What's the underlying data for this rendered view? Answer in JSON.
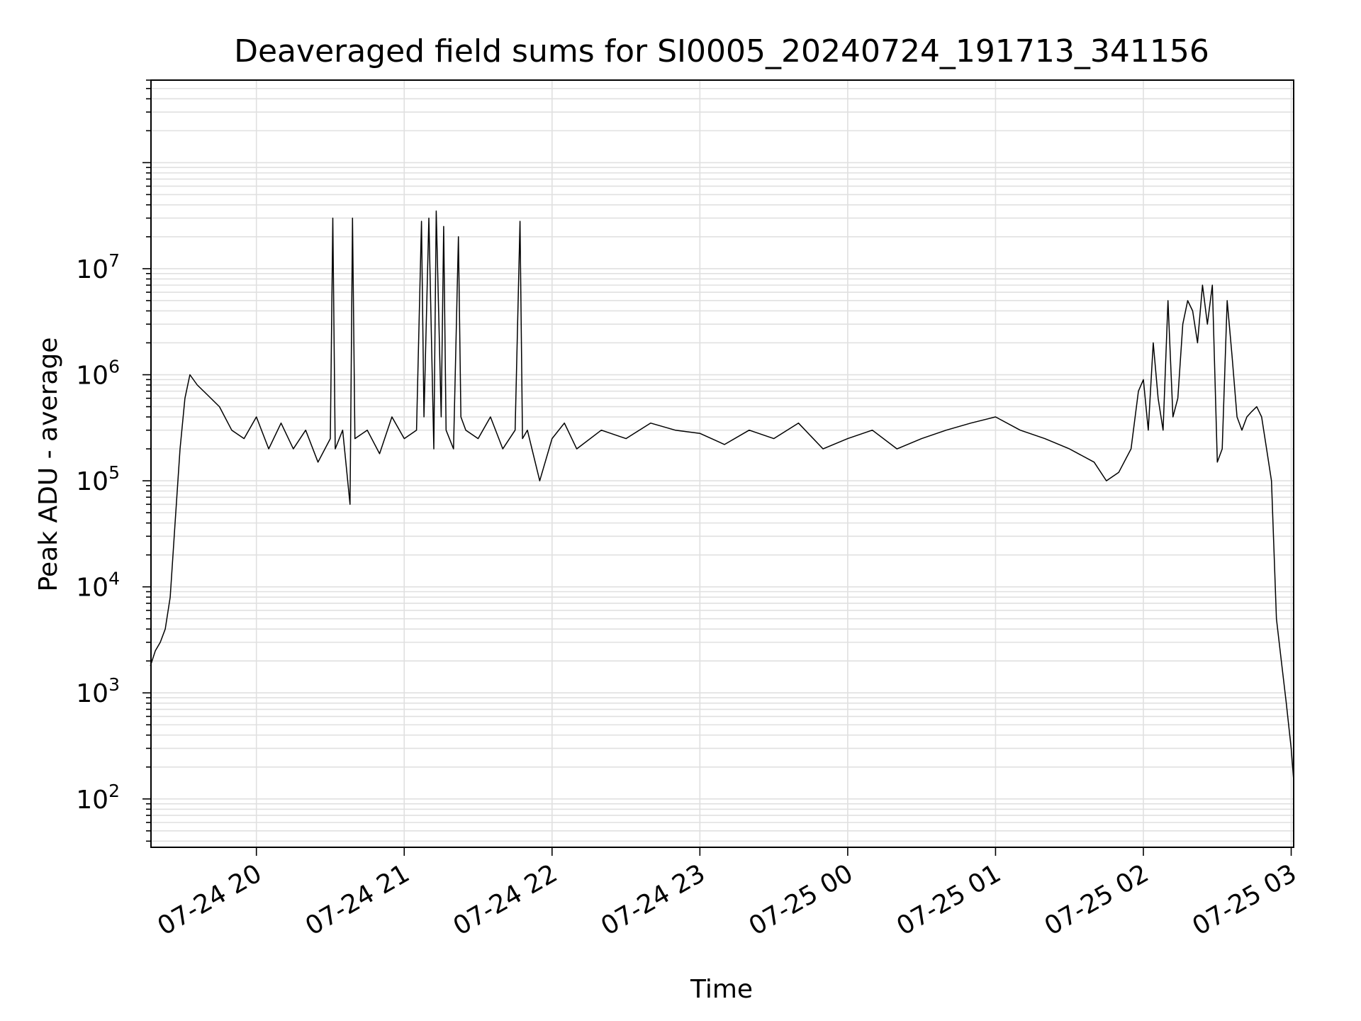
{
  "chart_data": {
    "type": "line",
    "title": "Deaveraged field sums for SI0005_20240724_191713_341156",
    "xlabel": "Time",
    "ylabel": "Peak ADU - average",
    "yscale": "log",
    "ylim": [
      35,
      600000000
    ],
    "xlim": [
      "2024-07-24 19:17:13",
      "2024-07-25 03:01:00"
    ],
    "grid": true,
    "x_ticks": [
      "07-24 20",
      "07-24 21",
      "07-24 22",
      "07-24 23",
      "07-25 00",
      "07-25 01",
      "07-25 02",
      "07-25 03"
    ],
    "x_tick_times": [
      "2024-07-24 20:00",
      "2024-07-24 21:00",
      "2024-07-24 22:00",
      "2024-07-24 23:00",
      "2024-07-25 00:00",
      "2024-07-25 01:00",
      "2024-07-25 02:00",
      "2024-07-25 03:00"
    ],
    "y_ticks": [
      {
        "base": "10",
        "exp": "2",
        "value": 100
      },
      {
        "base": "10",
        "exp": "3",
        "value": 1000
      },
      {
        "base": "10",
        "exp": "4",
        "value": 10000
      },
      {
        "base": "10",
        "exp": "5",
        "value": 100000
      },
      {
        "base": "10",
        "exp": "6",
        "value": 1000000
      },
      {
        "base": "10",
        "exp": "7",
        "value": 10000000
      }
    ],
    "line_color": "#000000",
    "series": [
      {
        "x": [
          "2024-07-24 19:17",
          "2024-07-24 19:19",
          "2024-07-24 19:21",
          "2024-07-24 19:23",
          "2024-07-24 19:25",
          "2024-07-24 19:27",
          "2024-07-24 19:29",
          "2024-07-24 19:31",
          "2024-07-24 19:33",
          "2024-07-24 19:36",
          "2024-07-24 19:40",
          "2024-07-24 19:45",
          "2024-07-24 19:50",
          "2024-07-24 19:55",
          "2024-07-24 20:00",
          "2024-07-24 20:05",
          "2024-07-24 20:10",
          "2024-07-24 20:15",
          "2024-07-24 20:20",
          "2024-07-24 20:25",
          "2024-07-24 20:30",
          "2024-07-24 20:31",
          "2024-07-24 20:32",
          "2024-07-24 20:35",
          "2024-07-24 20:38",
          "2024-07-24 20:39",
          "2024-07-24 20:40",
          "2024-07-24 20:45",
          "2024-07-24 20:50",
          "2024-07-24 20:55",
          "2024-07-24 21:00",
          "2024-07-24 21:05",
          "2024-07-24 21:07",
          "2024-07-24 21:08",
          "2024-07-24 21:10",
          "2024-07-24 21:12",
          "2024-07-24 21:13",
          "2024-07-24 21:15",
          "2024-07-24 21:16",
          "2024-07-24 21:17",
          "2024-07-24 21:20",
          "2024-07-24 21:22",
          "2024-07-24 21:23",
          "2024-07-24 21:25",
          "2024-07-24 21:30",
          "2024-07-24 21:35",
          "2024-07-24 21:40",
          "2024-07-24 21:45",
          "2024-07-24 21:47",
          "2024-07-24 21:48",
          "2024-07-24 21:50",
          "2024-07-24 21:55",
          "2024-07-24 22:00",
          "2024-07-24 22:05",
          "2024-07-24 22:10",
          "2024-07-24 22:20",
          "2024-07-24 22:30",
          "2024-07-24 22:40",
          "2024-07-24 22:50",
          "2024-07-24 23:00",
          "2024-07-24 23:10",
          "2024-07-24 23:20",
          "2024-07-24 23:30",
          "2024-07-24 23:40",
          "2024-07-24 23:50",
          "2024-07-25 00:00",
          "2024-07-25 00:10",
          "2024-07-25 00:20",
          "2024-07-25 00:30",
          "2024-07-25 00:40",
          "2024-07-25 00:50",
          "2024-07-25 01:00",
          "2024-07-25 01:10",
          "2024-07-25 01:20",
          "2024-07-25 01:30",
          "2024-07-25 01:40",
          "2024-07-25 01:45",
          "2024-07-25 01:50",
          "2024-07-25 01:55",
          "2024-07-25 01:58",
          "2024-07-25 02:00",
          "2024-07-25 02:02",
          "2024-07-25 02:04",
          "2024-07-25 02:06",
          "2024-07-25 02:08",
          "2024-07-25 02:10",
          "2024-07-25 02:12",
          "2024-07-25 02:14",
          "2024-07-25 02:16",
          "2024-07-25 02:18",
          "2024-07-25 02:20",
          "2024-07-25 02:22",
          "2024-07-25 02:24",
          "2024-07-25 02:26",
          "2024-07-25 02:28",
          "2024-07-25 02:30",
          "2024-07-25 02:32",
          "2024-07-25 02:34",
          "2024-07-25 02:36",
          "2024-07-25 02:38",
          "2024-07-25 02:40",
          "2024-07-25 02:42",
          "2024-07-25 02:44",
          "2024-07-25 02:46",
          "2024-07-25 02:48",
          "2024-07-25 02:50",
          "2024-07-25 02:52",
          "2024-07-25 02:54",
          "2024-07-25 02:56",
          "2024-07-25 02:58",
          "2024-07-25 03:00",
          "2024-07-25 03:01"
        ],
        "y": [
          1800,
          2500,
          3000,
          4000,
          8000,
          40000,
          200000,
          600000,
          1000000,
          800000,
          650000,
          500000,
          300000,
          250000,
          400000,
          200000,
          350000,
          200000,
          300000,
          150000,
          250000,
          30000000,
          200000,
          300000,
          60000,
          30000000,
          250000,
          300000,
          180000,
          400000,
          250000,
          300000,
          28000000,
          400000,
          30000000,
          200000,
          35000000,
          400000,
          25000000,
          300000,
          200000,
          20000000,
          400000,
          300000,
          250000,
          400000,
          200000,
          300000,
          28000000,
          250000,
          300000,
          100000,
          250000,
          350000,
          200000,
          300000,
          250000,
          350000,
          300000,
          280000,
          220000,
          300000,
          250000,
          350000,
          200000,
          250000,
          300000,
          200000,
          250000,
          300000,
          350000,
          400000,
          300000,
          250000,
          200000,
          150000,
          100000,
          120000,
          200000,
          700000,
          900000,
          300000,
          2000000,
          600000,
          300000,
          5000000,
          400000,
          600000,
          3000000,
          5000000,
          4000000,
          2000000,
          7000000,
          3000000,
          7000000,
          150000,
          200000,
          5000000,
          1500000,
          400000,
          300000,
          400000,
          450000,
          500000,
          400000,
          200000,
          100000,
          5000,
          2000,
          800,
          300,
          150
        ]
      }
    ]
  }
}
